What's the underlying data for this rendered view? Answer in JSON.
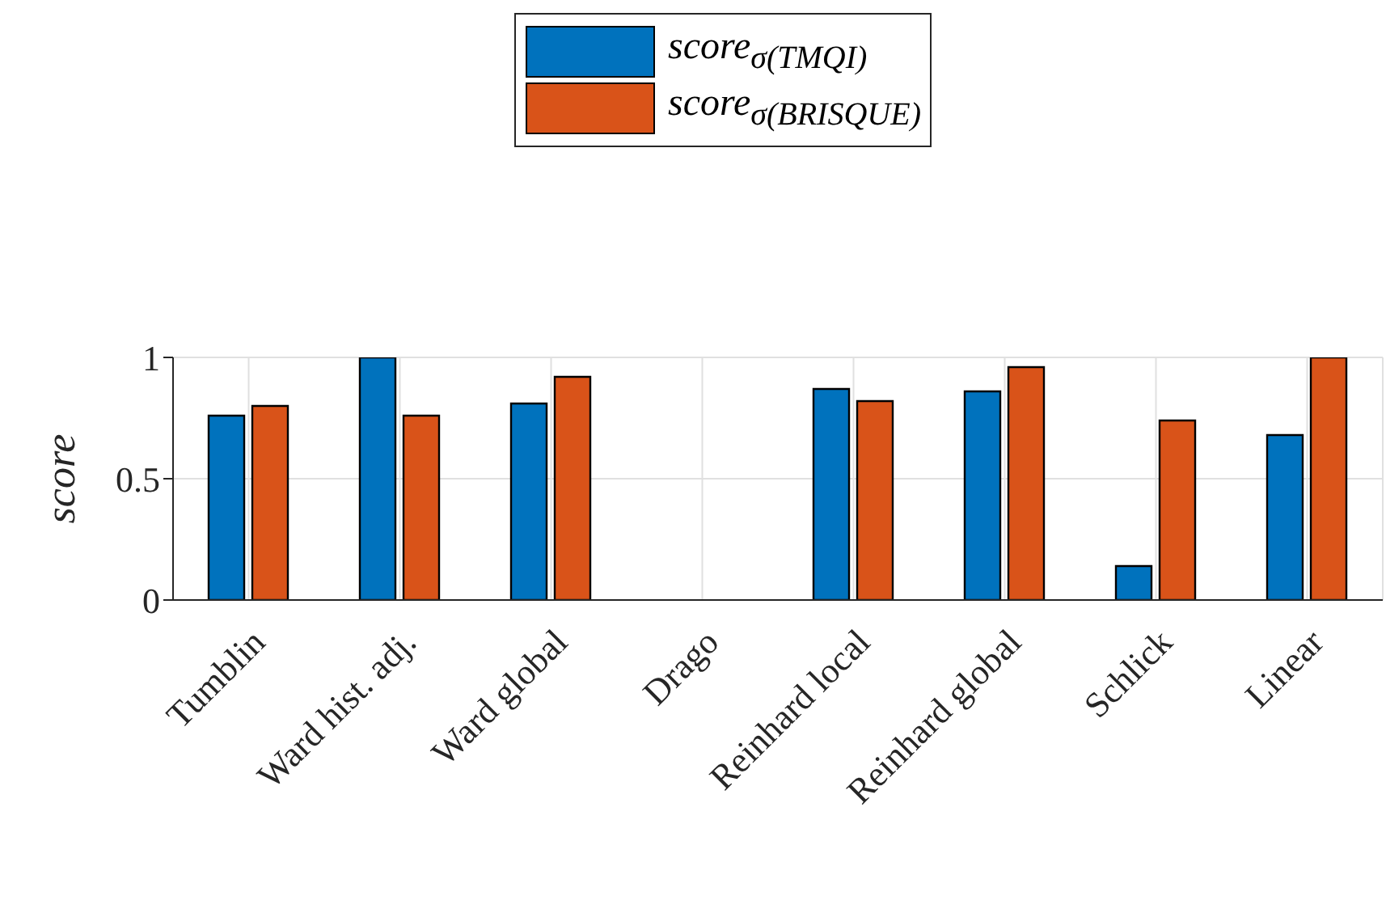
{
  "chart_data": {
    "type": "bar",
    "ylabel": "score",
    "categories": [
      "Tumblin",
      "Ward hist. adj.",
      "Ward global",
      "Drago",
      "Reinhard local",
      "Reinhard global",
      "Schlick",
      "Linear"
    ],
    "series": [
      {
        "name": "score$_{σ(TMQI)}$",
        "color": "#0072bd",
        "values": [
          0.76,
          1,
          0.81,
          0,
          0.87,
          0.86,
          0.14,
          0.68
        ]
      },
      {
        "name": "score$_{σ(BRISQUE)}$",
        "color": "#d95319",
        "values": [
          0.8,
          0.76,
          0.92,
          0,
          0.82,
          0.96,
          0.74,
          1
        ]
      }
    ],
    "ylim": [
      0,
      1
    ],
    "yticks": [
      0,
      0.5,
      1
    ],
    "grid": true,
    "legend": "top"
  }
}
